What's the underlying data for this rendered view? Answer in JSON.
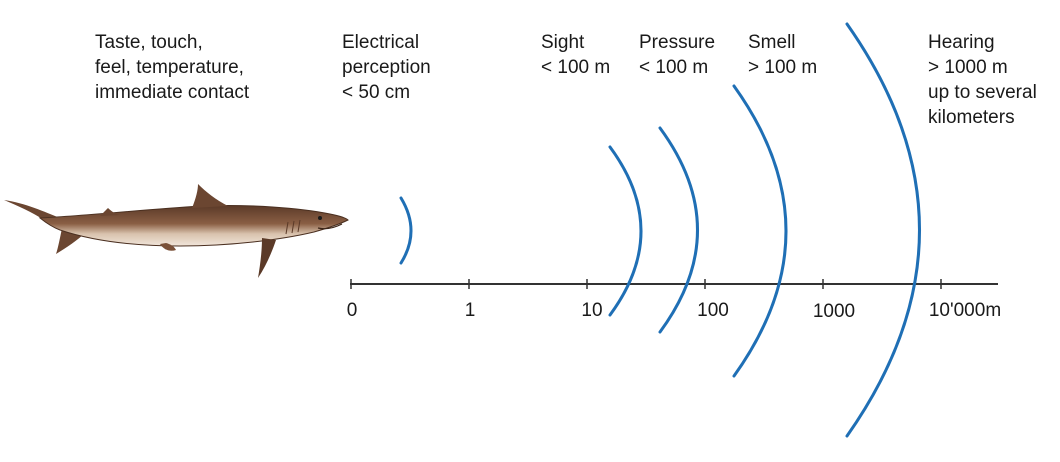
{
  "senses": [
    {
      "id": "taste",
      "lines": [
        "Taste, touch,",
        "feel, temperature,",
        "immediate contact"
      ]
    },
    {
      "id": "electrical",
      "lines": [
        "Electrical",
        "perception",
        "< 50 cm"
      ]
    },
    {
      "id": "sight",
      "lines": [
        "Sight",
        "< 100 m"
      ]
    },
    {
      "id": "pressure",
      "lines": [
        "Pressure",
        "< 100 m"
      ]
    },
    {
      "id": "smell",
      "lines": [
        "Smell",
        "> 100 m"
      ]
    },
    {
      "id": "hearing",
      "lines": [
        "Hearing",
        "> 1000 m",
        "up to several",
        "kilometers"
      ]
    }
  ],
  "axis": {
    "ticks": [
      "0",
      "1",
      "10",
      "100",
      "1000",
      "10'000m"
    ]
  },
  "colors": {
    "arc": "#1f6fb5",
    "axis": "#333333",
    "text": "#1a1a1a"
  },
  "shark": {
    "icon": "shark-illustration"
  }
}
